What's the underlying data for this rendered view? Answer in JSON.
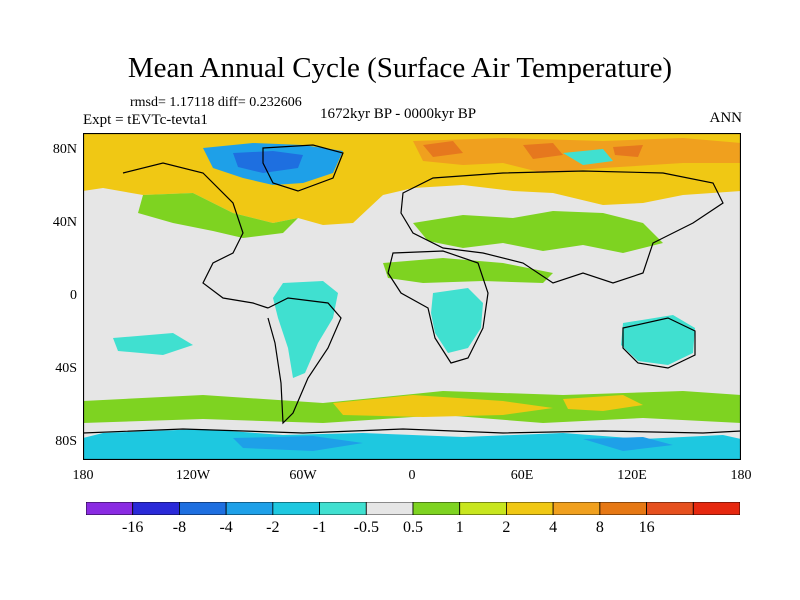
{
  "title": "Mean Annual Cycle (Surface Air Temperature)",
  "stats": "rmsd= 1.17118 diff= 0.232606",
  "experiment": "Expt = tEVTc-tevta1",
  "period": "1672kyr BP - 0000kyr BP",
  "season": "ANN",
  "y_ticks": [
    "80N",
    "40N",
    "0",
    "40S",
    "80S"
  ],
  "x_ticks": [
    "180",
    "120W",
    "60W",
    "0",
    "60E",
    "120E",
    "180"
  ],
  "colorbar": {
    "colors": [
      "#8a2be2",
      "#2a2ad8",
      "#1e6fe0",
      "#1ea0e8",
      "#1ec8e0",
      "#40e0d0",
      "#e6e6e6",
      "#7ed321",
      "#c8e61e",
      "#f0c814",
      "#f0a01e",
      "#e67814",
      "#e6501e",
      "#e6280f"
    ],
    "labels": [
      "-16",
      "-8",
      "-4",
      "-2",
      "-1",
      "-0.5",
      "0.5",
      "1",
      "2",
      "4",
      "8",
      "16"
    ]
  }
}
